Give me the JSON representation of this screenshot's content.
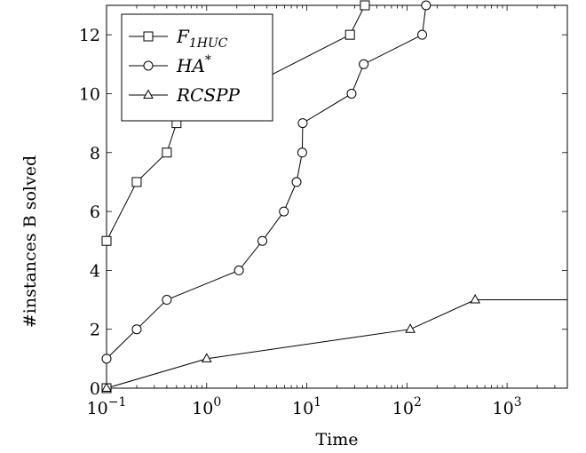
{
  "chart_data": {
    "type": "line",
    "title": "",
    "xlabel": "Time",
    "ylabel": "#instances B solved",
    "x_scale": "log",
    "xlim": [
      0.1,
      4000
    ],
    "ylim": [
      0,
      13
    ],
    "x_ticks": [
      {
        "value": 0.1,
        "base": "10",
        "exp": "−1"
      },
      {
        "value": 1,
        "base": "10",
        "exp": "0"
      },
      {
        "value": 10,
        "base": "10",
        "exp": "1"
      },
      {
        "value": 100,
        "base": "10",
        "exp": "2"
      },
      {
        "value": 1000,
        "base": "10",
        "exp": "3"
      }
    ],
    "y_ticks": [
      0,
      2,
      4,
      6,
      8,
      10,
      12
    ],
    "grid": false,
    "legend_position": "top-left",
    "series": [
      {
        "name_base": "F",
        "name_sub": "1HUC",
        "marker": "square",
        "x": [
          0.1,
          0.1,
          0.2,
          0.4,
          0.5,
          27,
          38
        ],
        "y": [
          0,
          5,
          7,
          8,
          9,
          12,
          13
        ]
      },
      {
        "name_base": "HA",
        "name_sup": "*",
        "marker": "circle",
        "x": [
          0.1,
          0.2,
          0.4,
          2.1,
          3.6,
          5.9,
          7.9,
          9.0,
          9.1,
          28,
          37,
          142,
          155
        ],
        "y": [
          1,
          2,
          3,
          4,
          5,
          6,
          7,
          8,
          9,
          10,
          11,
          12,
          13
        ]
      },
      {
        "name_base": "RCSPP",
        "marker": "triangle",
        "x": [
          0.1,
          1.0,
          108,
          480,
          4000
        ],
        "y": [
          0,
          1,
          2,
          3,
          3
        ]
      }
    ]
  }
}
